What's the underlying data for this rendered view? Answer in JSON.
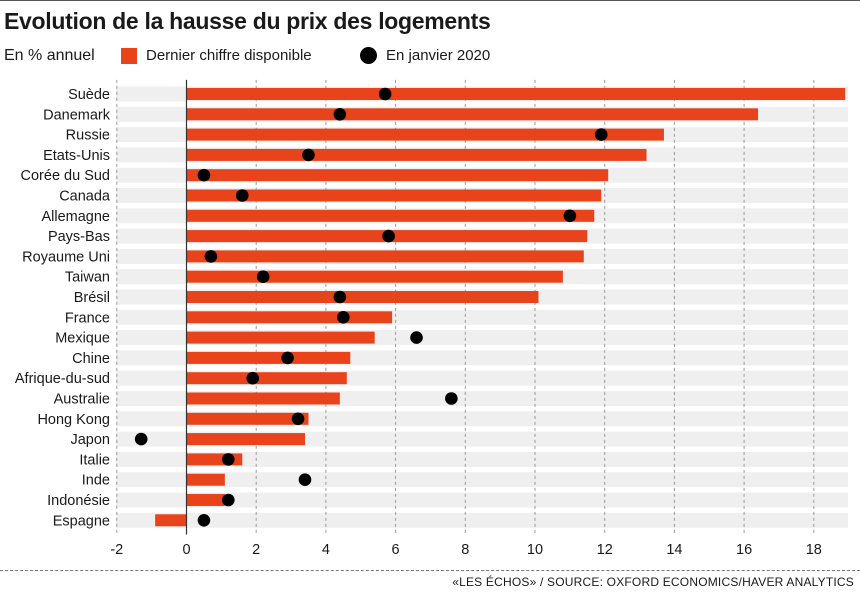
{
  "chart_data": {
    "type": "bar",
    "orientation": "horizontal",
    "title": "Evolution de la hausse du prix des logements",
    "unit_label": "En % annuel",
    "categories": [
      "Suède",
      "Danemark",
      "Russie",
      "Etats-Unis",
      "Corée du Sud",
      "Canada",
      "Allemagne",
      "Pays-Bas",
      "Royaume Uni",
      "Taiwan",
      "Brésil",
      "France",
      "Mexique",
      "Chine",
      "Afrique-du-sud",
      "Australie",
      "Hong Kong",
      "Japon",
      "Italie",
      "Inde",
      "Indonésie",
      "Espagne"
    ],
    "series": [
      {
        "name": "Dernier chiffre disponible",
        "kind": "bar",
        "color": "#e8431b",
        "values": [
          18.9,
          16.4,
          13.7,
          13.2,
          12.1,
          11.9,
          11.7,
          11.5,
          11.4,
          10.8,
          10.1,
          5.9,
          5.4,
          4.7,
          4.6,
          4.4,
          3.5,
          3.4,
          1.6,
          1.1,
          1.1,
          -0.9
        ]
      },
      {
        "name": "En janvier 2020",
        "kind": "dot",
        "color": "#000000",
        "values": [
          5.7,
          4.4,
          11.9,
          3.5,
          0.5,
          1.6,
          11.0,
          5.8,
          0.7,
          2.2,
          4.4,
          4.5,
          6.6,
          2.9,
          1.9,
          7.6,
          3.2,
          -1.3,
          1.2,
          3.4,
          1.2,
          0.5
        ]
      }
    ],
    "x_ticks": [
      -2,
      0,
      2,
      4,
      6,
      8,
      10,
      12,
      14,
      16,
      18
    ],
    "xlim": [
      -2.2,
      19.0
    ],
    "grid": "dashed vertical",
    "legend_placement": "top"
  },
  "source": "«LES ÉCHOS» / SOURCE:  OXFORD ECONOMICS/HAVER ANALYTICS"
}
